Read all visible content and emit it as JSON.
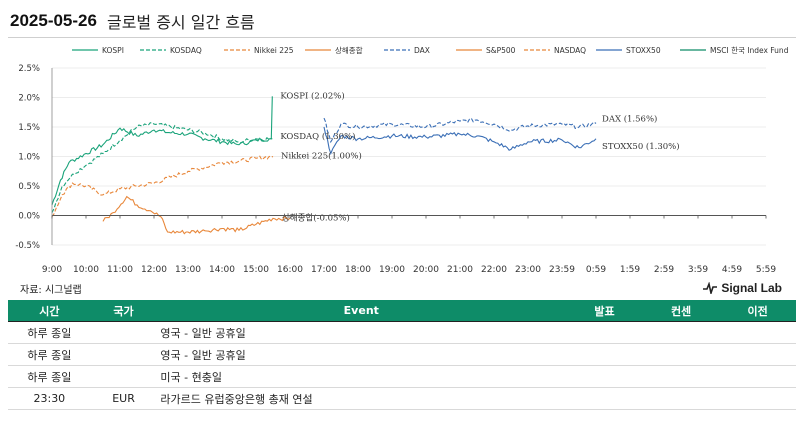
{
  "header": {
    "date": "2025-05-26",
    "title": "글로벌 증시 일간 흐름"
  },
  "chart_data": {
    "type": "line",
    "ylim": [
      -0.5,
      2.5
    ],
    "y_ticks": [
      "-0.5%",
      "0.0%",
      "0.5%",
      "1.0%",
      "1.5%",
      "2.0%",
      "2.5%"
    ],
    "x_ticks": [
      "9:00",
      "10:00",
      "11:00",
      "12:00",
      "13:00",
      "14:00",
      "15:00",
      "16:00",
      "17:00",
      "18:00",
      "19:00",
      "20:00",
      "21:00",
      "22:00",
      "23:00",
      "23:59",
      "0:59",
      "1:59",
      "2:59",
      "3:59",
      "4:59",
      "5:59"
    ],
    "legend_position": "top",
    "series": [
      {
        "name": "KOSPI",
        "color": "#1aa37a",
        "dash": "solid",
        "points": [
          [
            0,
            0.18
          ],
          [
            0.25,
            0.6
          ],
          [
            0.5,
            0.9
          ],
          [
            1,
            1.05
          ],
          [
            1.5,
            1.2
          ],
          [
            2,
            1.48
          ],
          [
            2.5,
            1.35
          ],
          [
            3,
            1.45
          ],
          [
            3.5,
            1.4
          ],
          [
            4,
            1.38
          ],
          [
            4.5,
            1.3
          ],
          [
            5,
            1.25
          ],
          [
            5.5,
            1.2
          ],
          [
            6,
            1.28
          ],
          [
            6.45,
            1.3
          ],
          [
            6.48,
            2.02
          ]
        ],
        "end_label": "KOSPI (2.02%)"
      },
      {
        "name": "KOSDAQ",
        "color": "#1aa37a",
        "dash": "dashed",
        "points": [
          [
            0,
            0.05
          ],
          [
            0.3,
            0.5
          ],
          [
            0.6,
            0.7
          ],
          [
            1,
            0.85
          ],
          [
            1.5,
            1.05
          ],
          [
            2,
            1.28
          ],
          [
            2.5,
            1.5
          ],
          [
            3,
            1.55
          ],
          [
            3.5,
            1.5
          ],
          [
            4,
            1.45
          ],
          [
            4.5,
            1.4
          ],
          [
            5,
            1.3
          ],
          [
            5.5,
            1.25
          ],
          [
            6,
            1.3
          ],
          [
            6.48,
            1.3
          ]
        ],
        "end_label": "KOSDAQ (1.30%)"
      },
      {
        "name": "Nikkei 225",
        "color": "#e8873a",
        "dash": "dashed",
        "points": [
          [
            0,
            -0.02
          ],
          [
            0.3,
            0.35
          ],
          [
            0.6,
            0.55
          ],
          [
            1,
            0.5
          ],
          [
            1.5,
            0.35
          ],
          [
            2,
            0.45
          ],
          [
            2.5,
            0.5
          ],
          [
            3,
            0.55
          ],
          [
            3.5,
            0.65
          ],
          [
            4,
            0.75
          ],
          [
            4.5,
            0.82
          ],
          [
            5,
            0.9
          ],
          [
            5.5,
            0.92
          ],
          [
            6,
            0.97
          ],
          [
            6.5,
            1.0
          ]
        ],
        "end_label": "Nikkei 225(1.00%)"
      },
      {
        "name": "상해종합",
        "color": "#e8873a",
        "dash": "solid",
        "points": [
          [
            1.5,
            -0.1
          ],
          [
            1.8,
            0.05
          ],
          [
            2.2,
            0.32
          ],
          [
            2.5,
            0.18
          ],
          [
            2.9,
            0.08
          ],
          [
            3.2,
            -0.02
          ],
          [
            3.4,
            -0.28
          ],
          [
            4,
            -0.28
          ],
          [
            4.5,
            -0.26
          ],
          [
            5,
            -0.22
          ],
          [
            5.5,
            -0.25
          ],
          [
            6,
            -0.15
          ],
          [
            6.5,
            -0.05
          ],
          [
            7,
            -0.05
          ]
        ],
        "end_label": "상해종합(-0.05%)"
      },
      {
        "name": "DAX",
        "color": "#3b6fb6",
        "dash": "dashed",
        "points": [
          [
            8,
            1.65
          ],
          [
            8.2,
            1.25
          ],
          [
            8.5,
            1.55
          ],
          [
            9,
            1.5
          ],
          [
            10,
            1.55
          ],
          [
            11,
            1.5
          ],
          [
            12,
            1.6
          ],
          [
            12.5,
            1.62
          ],
          [
            13,
            1.55
          ],
          [
            13.5,
            1.45
          ],
          [
            14,
            1.52
          ],
          [
            15,
            1.55
          ],
          [
            15.5,
            1.5
          ],
          [
            16,
            1.56
          ]
        ],
        "end_label": "DAX (1.56%)"
      },
      {
        "name": "S&P500",
        "color": "#e8873a",
        "dash": "solid",
        "points": []
      },
      {
        "name": "NASDAQ",
        "color": "#e8873a",
        "dash": "dashed",
        "points": []
      },
      {
        "name": "STOXX50",
        "color": "#3b6fb6",
        "dash": "solid",
        "points": [
          [
            8,
            1.5
          ],
          [
            8.2,
            1.05
          ],
          [
            8.5,
            1.35
          ],
          [
            9,
            1.3
          ],
          [
            10,
            1.35
          ],
          [
            11,
            1.33
          ],
          [
            12,
            1.38
          ],
          [
            12.5,
            1.35
          ],
          [
            13,
            1.25
          ],
          [
            13.5,
            1.12
          ],
          [
            14,
            1.25
          ],
          [
            15,
            1.28
          ],
          [
            15.5,
            1.15
          ],
          [
            16,
            1.3
          ]
        ],
        "end_label": "STOXX50 (1.30%)"
      },
      {
        "name": "MSCI 한국 Index Fund",
        "color": "#0e8c68",
        "dash": "solid",
        "points": [
          [
            14.6,
            0.0
          ],
          [
            21,
            0.0
          ]
        ]
      }
    ]
  },
  "source": "자료: 시그널랩",
  "brand": "Signal Lab",
  "calendar": {
    "headers": [
      "시간",
      "국가",
      "Event",
      "발표",
      "컨센",
      "이전"
    ],
    "rows": [
      {
        "time": "하루 종일",
        "country": "",
        "event": "영국 - 일반 공휴일",
        "actual": "",
        "forecast": "",
        "previous": ""
      },
      {
        "time": "하루 종일",
        "country": "",
        "event": "영국 - 일반 공휴일",
        "actual": "",
        "forecast": "",
        "previous": ""
      },
      {
        "time": "하루 종일",
        "country": "",
        "event": "미국 - 현충일",
        "actual": "",
        "forecast": "",
        "previous": ""
      },
      {
        "time": "23:30",
        "country": "EUR",
        "event": "라가르드 유럽중앙은행 총재 연설",
        "actual": "",
        "forecast": "",
        "previous": ""
      }
    ]
  }
}
